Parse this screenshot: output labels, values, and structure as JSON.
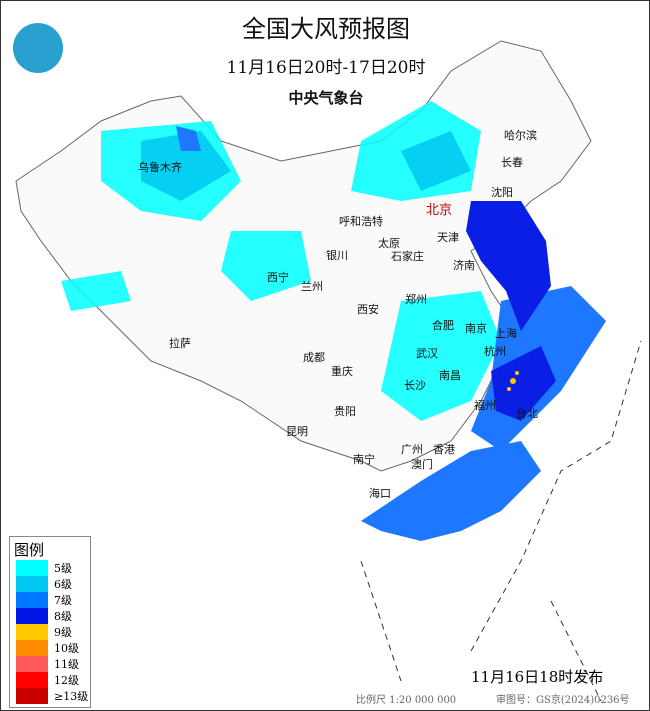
{
  "header": {
    "title": "全国大风预报图",
    "period": "11月16日20时-17日20时",
    "agency": "中央气象台"
  },
  "legend": {
    "title": "图例",
    "items": [
      {
        "label": "5级",
        "color": "#00ffff"
      },
      {
        "label": "6级",
        "color": "#00c8f0"
      },
      {
        "label": "7级",
        "color": "#0078ff"
      },
      {
        "label": "8级",
        "color": "#0014e6"
      },
      {
        "label": "9级",
        "color": "#ffc800"
      },
      {
        "label": "10级",
        "color": "#ff8c00"
      },
      {
        "label": "11级",
        "color": "#ff5a5a"
      },
      {
        "label": "12级",
        "color": "#ff0000"
      },
      {
        "label": "≥13级",
        "color": "#c80000"
      }
    ]
  },
  "cities": [
    "乌鲁木齐",
    "哈尔滨",
    "长春",
    "沈阳",
    "北京",
    "天津",
    "呼和浩特",
    "银川",
    "太原",
    "石家庄",
    "济南",
    "西宁",
    "兰州",
    "西安",
    "郑州",
    "合肥",
    "南京",
    "上海",
    "拉萨",
    "成都",
    "武汉",
    "杭州",
    "重庆",
    "南昌",
    "长沙",
    "福州",
    "台北",
    "贵阳",
    "昆明",
    "南宁",
    "广州",
    "香港",
    "澳门",
    "海口"
  ],
  "footer": {
    "issued": "11月16日18时发布",
    "scale": "比例尺 1:20 000 000",
    "review_no": "审图号：GS京(2024)0236号"
  }
}
